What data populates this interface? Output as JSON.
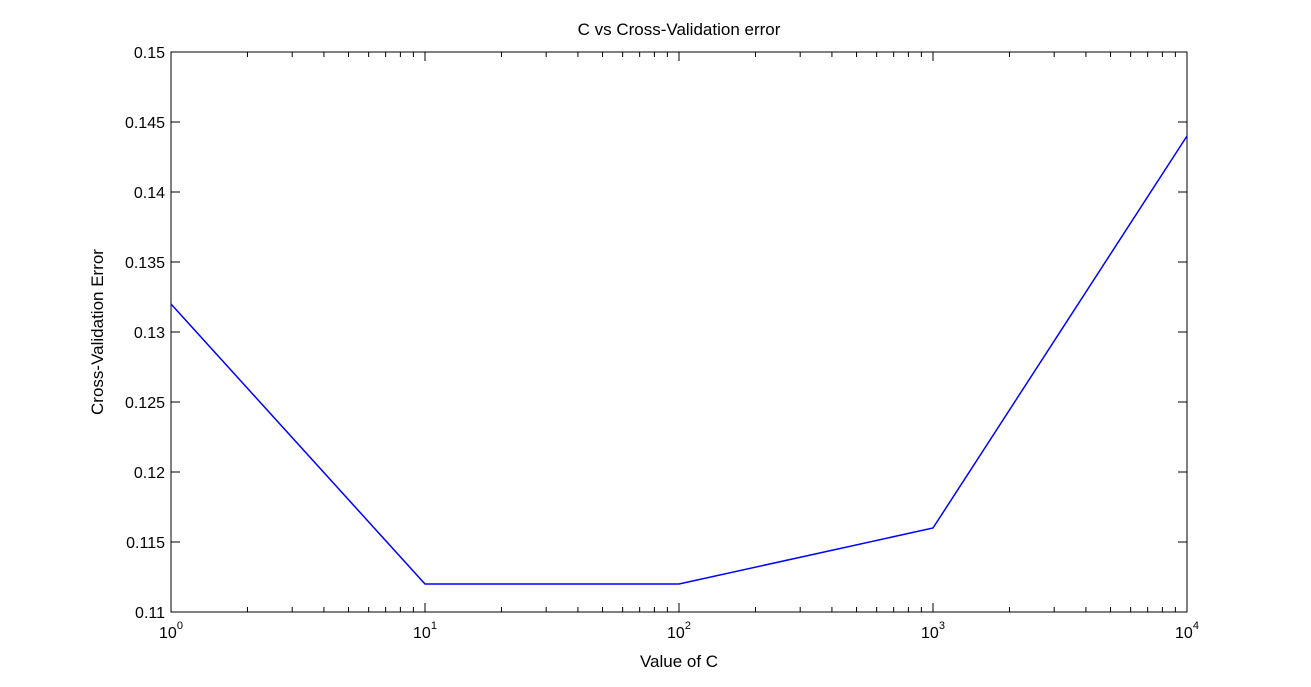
{
  "chart_data": {
    "type": "line",
    "title": "C vs Cross-Validation error",
    "xlabel": "Value of C",
    "ylabel": "Cross-Validation Error",
    "x_scale": "log",
    "xlim": [
      1,
      10000
    ],
    "ylim": [
      0.11,
      0.15
    ],
    "x_ticks": [
      {
        "base": "10",
        "exp": "0"
      },
      {
        "base": "10",
        "exp": "1"
      },
      {
        "base": "10",
        "exp": "2"
      },
      {
        "base": "10",
        "exp": "3"
      },
      {
        "base": "10",
        "exp": "4"
      }
    ],
    "y_ticks": [
      "0.11",
      "0.115",
      "0.12",
      "0.125",
      "0.13",
      "0.135",
      "0.14",
      "0.145",
      "0.15"
    ],
    "grid": false,
    "series": [
      {
        "color": "#0000ff",
        "x": [
          1,
          10,
          100,
          1000,
          10000
        ],
        "y": [
          0.132,
          0.112,
          0.112,
          0.116,
          0.144
        ]
      }
    ]
  }
}
